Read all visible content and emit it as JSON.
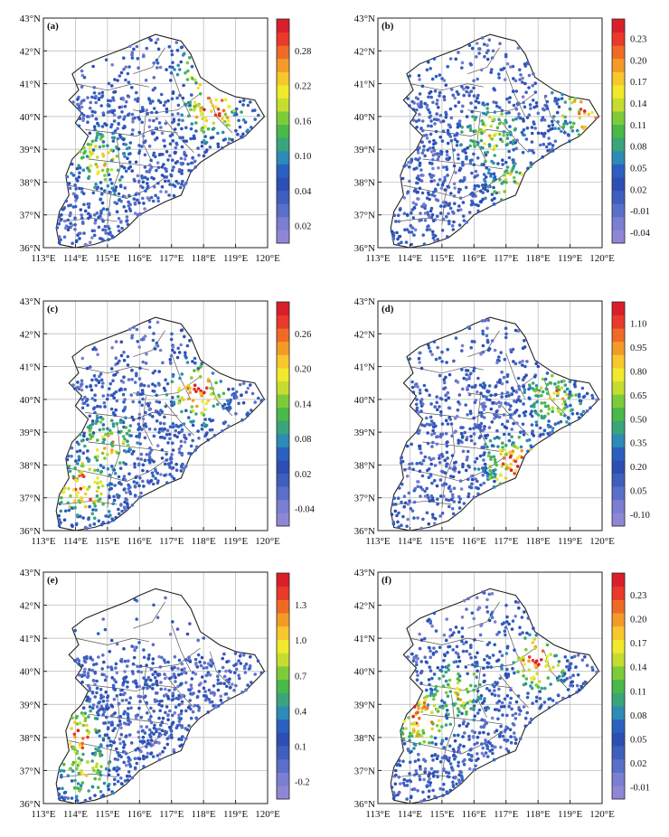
{
  "figure": {
    "panels": [
      {
        "label": "(a)",
        "colorbar": [
          "0.02",
          "0.04",
          "0.10",
          "0.16",
          "0.22",
          "0.28"
        ]
      },
      {
        "label": "(b)",
        "colorbar": [
          "-0.04",
          "-0.01",
          "0.02",
          "0.05",
          "0.08",
          "0.11",
          "0.14",
          "0.17",
          "0.20",
          "0.23"
        ]
      },
      {
        "label": "(c)",
        "colorbar": [
          "-0.04",
          "0.02",
          "0.08",
          "0.14",
          "0.20",
          "0.26"
        ]
      },
      {
        "label": "(d)",
        "colorbar": [
          "-0.10",
          "0.05",
          "0.20",
          "0.35",
          "0.50",
          "0.65",
          "0.80",
          "0.95",
          "1.10"
        ]
      },
      {
        "label": "(e)",
        "colorbar": [
          "-0.2",
          "0.1",
          "0.4",
          "0.7",
          "1.0",
          "1.3"
        ]
      },
      {
        "label": "(f)",
        "colorbar": [
          "-0.01",
          "0.02",
          "0.05",
          "0.08",
          "0.11",
          "0.14",
          "0.17",
          "0.20",
          "0.23"
        ]
      }
    ],
    "x_ticks": [
      "113°E",
      "114°E",
      "115°E",
      "116°E",
      "117°E",
      "118°E",
      "119°E",
      "120°E"
    ],
    "y_ticks": [
      "36°N",
      "37°N",
      "38°N",
      "39°N",
      "40°N",
      "41°N",
      "42°N",
      "43°N"
    ]
  },
  "chart_data": [
    {
      "type": "scatter",
      "panel": "(a)",
      "xlim": [
        113,
        120
      ],
      "ylim": [
        36,
        43
      ],
      "colorbar_range": [
        0.02,
        0.32
      ],
      "grid": true,
      "hotspots": [
        {
          "x": 118.3,
          "y": 40.2,
          "level": "high"
        },
        {
          "x": 114.8,
          "y": 38.7,
          "level": "mid"
        },
        {
          "x": 118.0,
          "y": 41.3,
          "level": "mid"
        }
      ]
    },
    {
      "type": "scatter",
      "panel": "(b)",
      "xlim": [
        113,
        120
      ],
      "ylim": [
        36,
        43
      ],
      "colorbar_range": [
        -0.04,
        0.25
      ],
      "grid": true,
      "hotspots": [
        {
          "x": 119.5,
          "y": 40.2,
          "level": "high"
        },
        {
          "x": 116.5,
          "y": 39.5,
          "level": "mid"
        },
        {
          "x": 117.3,
          "y": 37.8,
          "level": "mid"
        }
      ]
    },
    {
      "type": "scatter",
      "panel": "(c)",
      "xlim": [
        113,
        120
      ],
      "ylim": [
        36,
        43
      ],
      "colorbar_range": [
        -0.04,
        0.3
      ],
      "grid": true,
      "hotspots": [
        {
          "x": 117.8,
          "y": 40.2,
          "level": "high"
        },
        {
          "x": 114.2,
          "y": 37.3,
          "level": "high"
        },
        {
          "x": 115.0,
          "y": 38.7,
          "level": "mid"
        }
      ]
    },
    {
      "type": "scatter",
      "panel": "(d)",
      "xlim": [
        113,
        120
      ],
      "ylim": [
        36,
        43
      ],
      "colorbar_range": [
        -0.1,
        1.2
      ],
      "grid": true,
      "hotspots": [
        {
          "x": 117.2,
          "y": 38.0,
          "level": "high"
        },
        {
          "x": 118.5,
          "y": 40.1,
          "level": "mid"
        }
      ]
    },
    {
      "type": "scatter",
      "panel": "(e)",
      "xlim": [
        113,
        120
      ],
      "ylim": [
        36,
        43
      ],
      "colorbar_range": [
        -0.2,
        1.6
      ],
      "grid": true,
      "hotspots": [
        {
          "x": 114.0,
          "y": 38.0,
          "level": "high"
        },
        {
          "x": 114.3,
          "y": 37.0,
          "level": "mid"
        }
      ]
    },
    {
      "type": "scatter",
      "panel": "(f)",
      "xlim": [
        113,
        120
      ],
      "ylim": [
        36,
        43
      ],
      "colorbar_range": [
        -0.01,
        0.25
      ],
      "grid": true,
      "hotspots": [
        {
          "x": 114.3,
          "y": 38.6,
          "level": "high"
        },
        {
          "x": 118.0,
          "y": 40.3,
          "level": "high"
        },
        {
          "x": 115.5,
          "y": 39.4,
          "level": "mid"
        }
      ]
    }
  ]
}
